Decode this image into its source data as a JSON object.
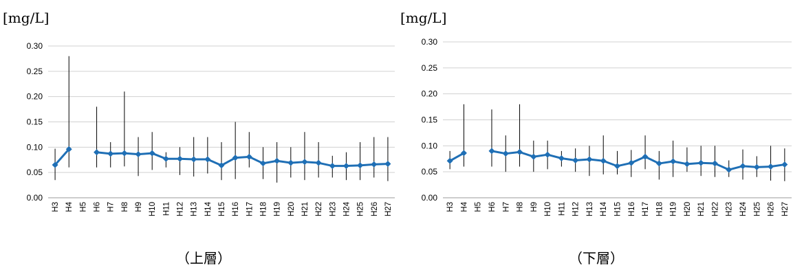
{
  "chart_data": [
    {
      "type": "line",
      "unit": "[mg/L]",
      "caption": "（上層）",
      "categories": [
        "H3",
        "H4",
        "H5",
        "H6",
        "H7",
        "H8",
        "H9",
        "H10",
        "H11",
        "H12",
        "H13",
        "H14",
        "H15",
        "H16",
        "H17",
        "H18",
        "H19",
        "H20",
        "H21",
        "H22",
        "H23",
        "H24",
        "H25",
        "H26",
        "H27"
      ],
      "ylim": [
        0,
        0.3
      ],
      "yticks": [
        "0.00",
        "0.05",
        "0.10",
        "0.15",
        "0.20",
        "0.25",
        "0.30"
      ],
      "grid": true,
      "series": [
        {
          "color": "#1f6fb5",
          "mean": [
            0.065,
            0.096,
            null,
            0.09,
            0.087,
            0.088,
            0.086,
            0.088,
            0.077,
            0.077,
            0.076,
            0.076,
            0.064,
            0.079,
            0.081,
            0.068,
            0.073,
            0.069,
            0.071,
            0.069,
            0.063,
            0.063,
            0.064,
            0.066,
            0.067
          ],
          "max": [
            0.097,
            0.28,
            null,
            0.18,
            0.11,
            0.21,
            0.12,
            0.13,
            0.09,
            0.1,
            0.12,
            0.12,
            0.11,
            0.15,
            0.13,
            0.1,
            0.11,
            0.1,
            0.13,
            0.11,
            0.083,
            0.09,
            0.11,
            0.12,
            0.12
          ],
          "min": [
            0.035,
            0.06,
            null,
            0.06,
            0.06,
            0.062,
            0.043,
            0.055,
            0.06,
            0.045,
            0.042,
            0.048,
            0.035,
            0.037,
            0.06,
            0.037,
            0.03,
            0.04,
            0.035,
            0.04,
            0.04,
            0.035,
            0.035,
            0.04,
            0.033
          ]
        }
      ]
    },
    {
      "type": "line",
      "unit": "[mg/L]",
      "caption": "（下層）",
      "categories": [
        "H3",
        "H4",
        "H5",
        "H6",
        "H7",
        "H8",
        "H9",
        "H10",
        "H11",
        "H12",
        "H13",
        "H14",
        "H15",
        "H16",
        "H17",
        "H18",
        "H19",
        "H20",
        "H21",
        "H22",
        "H23",
        "H24",
        "H25",
        "H26",
        "H27"
      ],
      "ylim": [
        0,
        0.3
      ],
      "yticks": [
        "0.00",
        "0.05",
        "0.10",
        "0.15",
        "0.20",
        "0.25",
        "0.30"
      ],
      "grid": true,
      "series": [
        {
          "color": "#1f6fb5",
          "mean": [
            0.071,
            0.086,
            null,
            0.09,
            0.085,
            0.088,
            0.079,
            0.083,
            0.076,
            0.072,
            0.074,
            0.071,
            0.061,
            0.067,
            0.079,
            0.066,
            0.07,
            0.065,
            0.067,
            0.066,
            0.054,
            0.061,
            0.059,
            0.06,
            0.064
          ],
          "max": [
            0.09,
            0.18,
            null,
            0.17,
            0.12,
            0.18,
            0.11,
            0.11,
            0.09,
            0.095,
            0.1,
            0.12,
            0.09,
            0.092,
            0.12,
            0.09,
            0.11,
            0.097,
            0.1,
            0.1,
            0.072,
            0.093,
            0.08,
            0.1,
            0.095
          ],
          "min": [
            0.055,
            0.06,
            null,
            0.06,
            0.05,
            0.06,
            0.05,
            0.055,
            0.06,
            0.05,
            0.042,
            0.045,
            0.045,
            0.04,
            0.055,
            0.035,
            0.04,
            0.05,
            0.042,
            0.04,
            0.04,
            0.035,
            0.04,
            0.033,
            0.032
          ]
        }
      ]
    }
  ]
}
